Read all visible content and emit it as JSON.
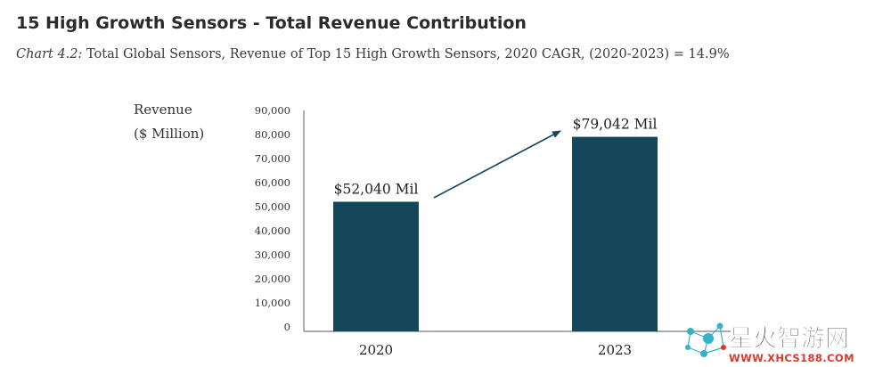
{
  "title": "15 High Growth Sensors - Total Revenue Contribution",
  "subtitle": {
    "lead": "Chart 4.2:",
    "rest": " Total Global Sensors, Revenue of Top 15 High Growth Sensors, 2020 CAGR, (2020-2023) = 14.9%"
  },
  "chart_data": {
    "type": "bar",
    "title": "15 High Growth Sensors - Total Revenue Contribution",
    "ylabel_line1": "Revenue",
    "ylabel_line2": "($ Million)",
    "xlabel": "",
    "ylim": [
      0,
      90000
    ],
    "ytick_values": [
      0,
      10000,
      20000,
      30000,
      40000,
      50000,
      60000,
      70000,
      80000,
      90000
    ],
    "yticks": [
      "0",
      "10,000",
      "20,000",
      "30,000",
      "40,000",
      "50,000",
      "60,000",
      "70,000",
      "80,000",
      "90,000"
    ],
    "categories": [
      "2020",
      "2023"
    ],
    "values": [
      52040,
      79042
    ],
    "data_labels": [
      "$52,040 Mil",
      "$79,042 Mil"
    ],
    "bar_color": "#14475a",
    "grid": false,
    "annotation": "arrow from 2020 bar to 2023 bar"
  },
  "watermark": {
    "brand": "星火智游网",
    "domain": "WWW.XHCS188.COM"
  },
  "colors": {
    "title": "#2b2b2b",
    "bar": "#14475a",
    "axis": "#777777",
    "wm_red": "#d93a2b",
    "wm_teal": "#33b3c7"
  }
}
